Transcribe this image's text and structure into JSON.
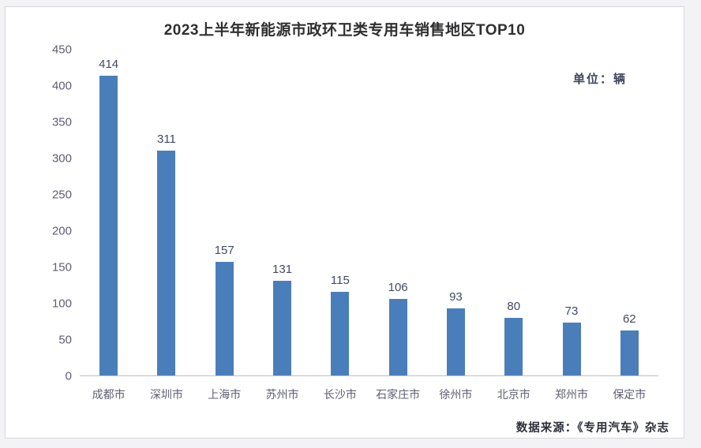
{
  "chart_data": {
    "type": "bar",
    "title": "2023上半年新能源市政环卫类专用车销售地区TOP10",
    "unit_label": "单位：辆",
    "source": "数据来源：《专用汽车》杂志",
    "categories": [
      "成都市",
      "深圳市",
      "上海市",
      "苏州市",
      "长沙市",
      "石家庄市",
      "徐州市",
      "北京市",
      "郑州市",
      "保定市"
    ],
    "values": [
      414,
      311,
      157,
      131,
      115,
      106,
      93,
      80,
      73,
      62
    ],
    "xlabel": "",
    "ylabel": "",
    "ylim": [
      0,
      450
    ],
    "y_ticks": [
      0,
      50,
      100,
      150,
      200,
      250,
      300,
      350,
      400,
      450
    ],
    "grid": false,
    "legend": "none",
    "data_labels": true,
    "bar_color": "#4a7ebb",
    "axis_line_color": "#bfbfc4",
    "tick_label_color": "#5d5e70",
    "value_label_color": "#404a66",
    "title_color": "#2f2f31",
    "background_color": "#ffffff"
  }
}
